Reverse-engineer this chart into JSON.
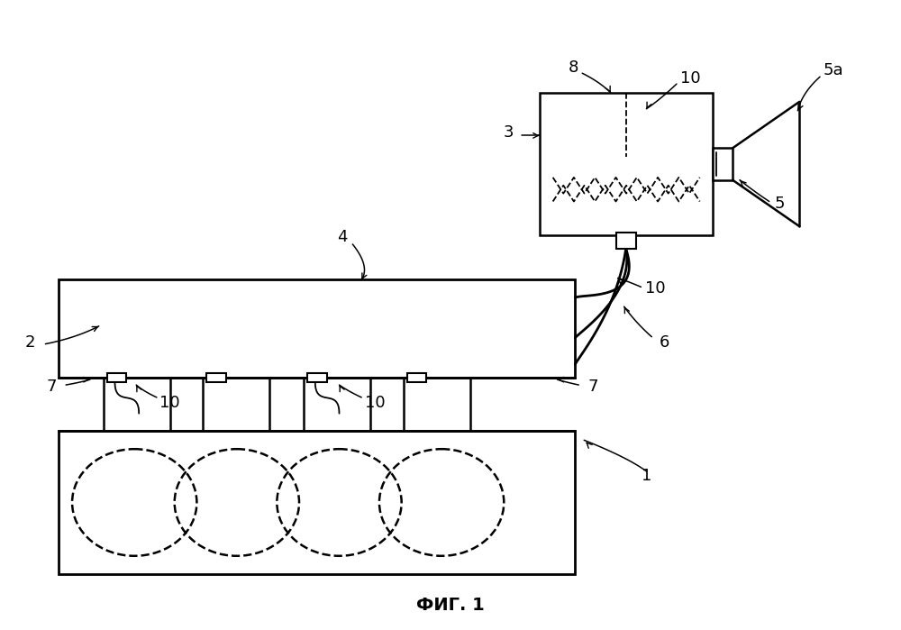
{
  "title": "ФИГ. 1",
  "bg_color": "#ffffff",
  "line_color": "#000000",
  "figsize": [
    10.0,
    6.99
  ],
  "dpi": 100
}
